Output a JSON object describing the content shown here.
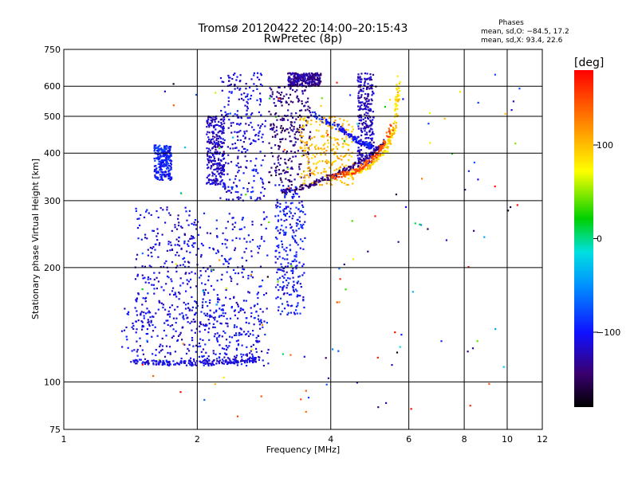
{
  "title": "Tromsø 20120422 20:14:00–20:15:43",
  "subtitle": "RwPretec (8p)",
  "phases": {
    "heading": "Phases",
    "line1": "mean, sd,O: −84.5, 17.2",
    "line2": "mean, sd,X:  93.4, 22.6"
  },
  "colorbar": {
    "label": "[deg]",
    "ticks": [
      {
        "value": 100,
        "label": "100"
      },
      {
        "value": 0,
        "label": "0"
      },
      {
        "value": -100,
        "label": "−100"
      }
    ],
    "range": [
      -180,
      180
    ]
  },
  "chart_data": {
    "type": "scatter",
    "xlabel": "Frequency [MHz]",
    "ylabel": "Stationary phase Virtual Height [km]",
    "xscale": "log",
    "yscale": "log",
    "xlim": [
      1,
      12
    ],
    "ylim": [
      75,
      750
    ],
    "xticks": [
      {
        "v": 1,
        "l": "1"
      },
      {
        "v": 2,
        "l": "2"
      },
      {
        "v": 4,
        "l": "4"
      },
      {
        "v": 6,
        "l": "6"
      },
      {
        "v": 8,
        "l": "8"
      },
      {
        "v": 10,
        "l": "10"
      },
      {
        "v": 12,
        "l": "12"
      }
    ],
    "yticks": [
      {
        "v": 75,
        "l": "75"
      },
      {
        "v": 100,
        "l": "100"
      },
      {
        "v": 200,
        "l": "200"
      },
      {
        "v": 300,
        "l": "300"
      },
      {
        "v": 400,
        "l": "400"
      },
      {
        "v": 500,
        "l": "500"
      },
      {
        "v": 600,
        "l": "600"
      },
      {
        "v": 750,
        "l": "750"
      }
    ],
    "grid": true,
    "color_scale": "phase in degrees (rainbow, -180 to 180)",
    "clusters": [
      {
        "x": [
          1.6,
          1.75
        ],
        "y": [
          340,
          420
        ],
        "phase": -95
      },
      {
        "x": [
          1.45,
          2.0
        ],
        "y": [
          140,
          290
        ],
        "phase": -110
      },
      {
        "x": [
          1.35,
          2.8
        ],
        "y": [
          112,
          160
        ],
        "phase": -110
      },
      {
        "x": [
          2.0,
          2.9
        ],
        "y": [
          110,
          280
        ],
        "phase": -105
      },
      {
        "x": [
          2.25,
          2.85
        ],
        "y": [
          300,
          650
        ],
        "phase": -110
      },
      {
        "x": [
          2.1,
          2.3
        ],
        "y": [
          330,
          500
        ],
        "phase": -120
      },
      {
        "x": [
          2.9,
          3.6
        ],
        "y": [
          330,
          600
        ],
        "phase": -140
      },
      {
        "x": [
          3.0,
          3.5
        ],
        "y": [
          150,
          330
        ],
        "phase": -100
      },
      {
        "x": [
          3.2,
          3.8
        ],
        "y": [
          600,
          650
        ],
        "phase": -130
      },
      {
        "x": [
          3.4,
          4.5
        ],
        "y": [
          330,
          500
        ],
        "phase": 100
      },
      {
        "x": [
          4.6,
          5.0
        ],
        "y": [
          370,
          650
        ],
        "phase": -120
      },
      {
        "x": [
          1.5,
          10.8
        ],
        "y": [
          80,
          650
        ],
        "phase": 40
      }
    ],
    "traces": [
      {
        "x": [
          3.1,
          3.6,
          4.2,
          4.8,
          5.3
        ],
        "y": [
          315,
          330,
          355,
          385,
          430
        ],
        "phase": -140
      },
      {
        "x": [
          3.6,
          4.2,
          4.6,
          5.0
        ],
        "y": [
          510,
          465,
          430,
          415
        ],
        "phase": -100
      },
      {
        "x": [
          4.3,
          4.8,
          5.3,
          5.6,
          5.7
        ],
        "y": [
          350,
          365,
          400,
          480,
          640
        ],
        "phase": 90
      },
      {
        "x": [
          4.0,
          4.6,
          5.1,
          5.5
        ],
        "y": [
          345,
          360,
          395,
          470
        ],
        "phase": 150
      },
      {
        "x": [
          1.45,
          1.7,
          2.0,
          2.4,
          2.8
        ],
        "y": [
          113,
          112,
          112,
          113,
          115
        ],
        "phase": -110
      }
    ]
  }
}
